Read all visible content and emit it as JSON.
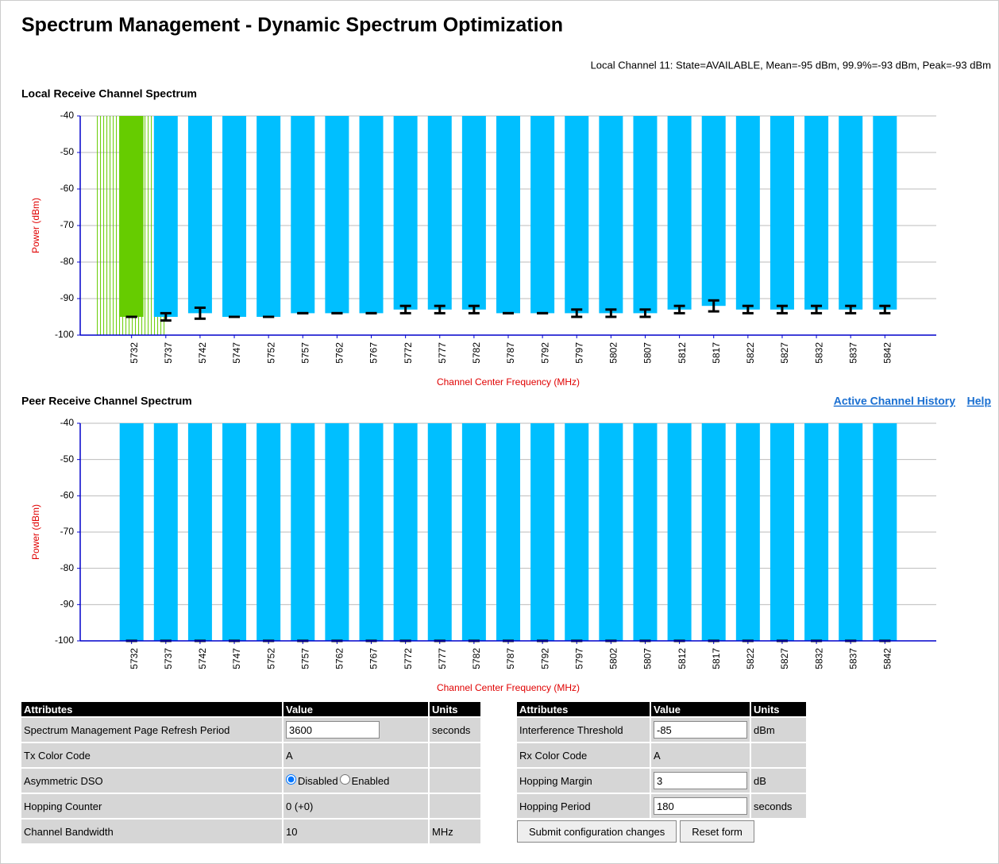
{
  "header": {
    "title": "Spectrum Management - Dynamic Spectrum Optimization",
    "status": "Local Channel 11: State=AVAILABLE, Mean=-95 dBm, 99.9%=-93 dBm, Peak=-93 dBm"
  },
  "links": [
    "Active Channel History",
    "Help"
  ],
  "chart_data": [
    {
      "type": "bar",
      "title": "Local Receive Channel Spectrum",
      "ylabel": "Power (dBm)",
      "xlabel": "Channel Center Frequency (MHz)",
      "categories": [
        "5732",
        "5737",
        "5742",
        "5747",
        "5752",
        "5757",
        "5762",
        "5767",
        "5772",
        "5777",
        "5782",
        "5787",
        "5792",
        "5797",
        "5802",
        "5807",
        "5812",
        "5817",
        "5822",
        "5827",
        "5832",
        "5837",
        "5842"
      ],
      "values": [
        -95,
        -95,
        -94,
        -95,
        -95,
        -94,
        -94,
        -94,
        -93,
        -93,
        -93,
        -94,
        -94,
        -94,
        -94,
        -94,
        -93,
        -92,
        -93,
        -93,
        -93,
        -93,
        -93
      ],
      "errors": [
        0,
        1,
        1.5,
        0,
        0,
        0,
        0,
        0,
        1,
        1,
        1,
        0,
        0,
        1,
        1,
        1,
        1,
        1.5,
        1,
        1,
        1,
        1,
        1
      ],
      "color": "#00bfff",
      "active_color": "#66cc00",
      "active_index": 0,
      "ylim": [
        -100,
        -40
      ],
      "yticks": [
        -100,
        -90,
        -80,
        -70,
        -60,
        -50,
        -40
      ],
      "grid": true
    },
    {
      "type": "bar",
      "title": "Peer Receive Channel Spectrum",
      "ylabel": "Power (dBm)",
      "xlabel": "Channel Center Frequency (MHz)",
      "categories": [
        "5732",
        "5737",
        "5742",
        "5747",
        "5752",
        "5757",
        "5762",
        "5767",
        "5772",
        "5777",
        "5782",
        "5787",
        "5792",
        "5797",
        "5802",
        "5807",
        "5812",
        "5817",
        "5822",
        "5827",
        "5832",
        "5837",
        "5842"
      ],
      "values": [
        -100,
        -100,
        -100,
        -100,
        -100,
        -100,
        -100,
        -100,
        -100,
        -100,
        -100,
        -100,
        -100,
        -100,
        -100,
        -100,
        -100,
        -100,
        -100,
        -100,
        -100,
        -100,
        -100
      ],
      "errors": [
        0,
        0,
        0,
        0,
        0,
        0,
        0,
        0,
        0,
        0,
        0,
        0,
        0,
        0,
        0,
        0,
        0,
        0,
        0,
        0,
        0,
        0,
        0
      ],
      "color": "#00bfff",
      "ylim": [
        -100,
        -40
      ],
      "yticks": [
        -100,
        -90,
        -80,
        -70,
        -60,
        -50,
        -40
      ],
      "grid": true
    }
  ],
  "tables": [
    {
      "headers": [
        "Attributes",
        "Value",
        "Units"
      ],
      "rows": [
        [
          "Spectrum Management Page Refresh Period",
          {
            "input": "3600"
          },
          "seconds"
        ],
        [
          "Tx Color Code",
          "A",
          ""
        ],
        [
          "Asymmetric DSO",
          {
            "options": [
              "Disabled",
              "Enabled"
            ],
            "selected": 0
          },
          ""
        ],
        [
          "Hopping Counter",
          "0 (+0)",
          ""
        ],
        [
          "Channel Bandwidth",
          "10",
          "MHz"
        ]
      ]
    },
    {
      "headers": [
        "Attributes",
        "Value",
        "Units"
      ],
      "rows": [
        [
          "Interference Threshold",
          {
            "input": "-85"
          },
          "dBm"
        ],
        [
          "Rx Color Code",
          "A",
          ""
        ],
        [
          "Hopping Margin",
          {
            "input": "3"
          },
          "dB"
        ],
        [
          "Hopping Period",
          {
            "input": "180"
          },
          "seconds"
        ]
      ]
    }
  ],
  "buttons": [
    "Submit configuration changes",
    "Reset form"
  ]
}
